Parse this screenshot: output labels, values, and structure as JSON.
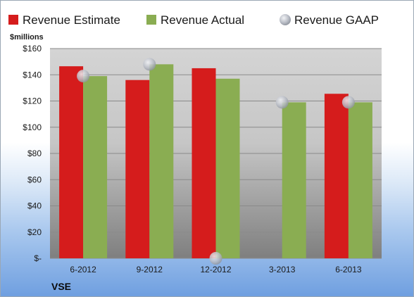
{
  "chart_data": {
    "type": "bar",
    "unit_label": "$millions",
    "company": "VSE",
    "categories": [
      "6-2012",
      "9-2012",
      "12-2012",
      "3-2013",
      "6-2013"
    ],
    "series": [
      {
        "name": "Revenue Estimate",
        "kind": "bar",
        "color": "#d51c1c",
        "values": [
          146.5,
          136,
          145,
          0,
          125.5
        ]
      },
      {
        "name": "Revenue Actual",
        "kind": "bar",
        "color": "#8aad52",
        "values": [
          139,
          148,
          137,
          119,
          119
        ]
      },
      {
        "name": "Revenue GAAP",
        "kind": "marker",
        "color": "#c8ccd4",
        "values": [
          139,
          148,
          0,
          119,
          119
        ]
      }
    ],
    "ylim": [
      0,
      160
    ],
    "yticks": [
      0,
      20,
      40,
      60,
      80,
      100,
      120,
      140,
      160
    ],
    "ytick_labels": [
      "$-",
      "$20",
      "$40",
      "$60",
      "$80",
      "$100",
      "$120",
      "$140",
      "$160"
    ],
    "grid": true,
    "legend_position": "top"
  }
}
